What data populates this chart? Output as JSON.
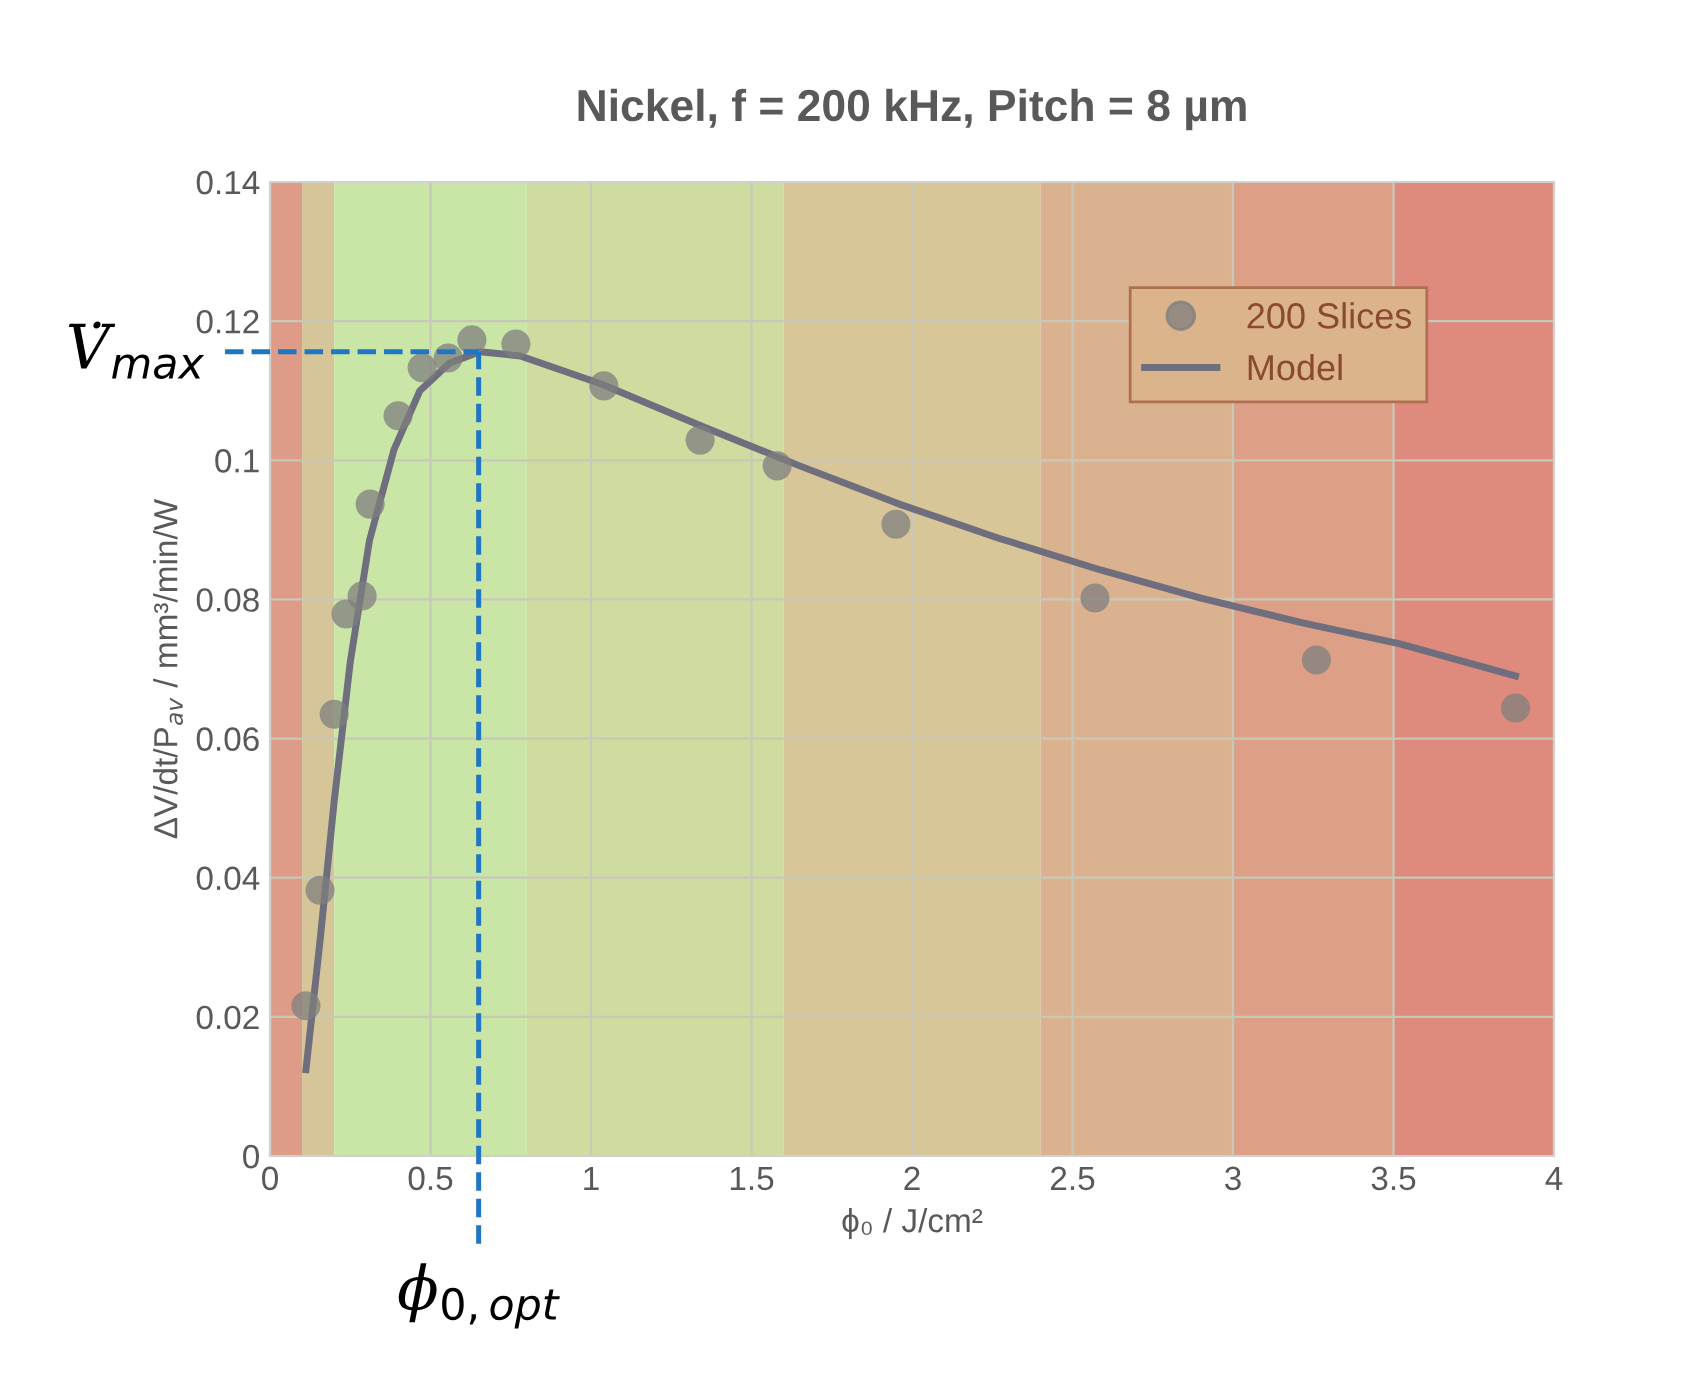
{
  "chart_data": {
    "type": "scatter",
    "title": "Nickel, f = 200 kHz, Pitch = 8 µm",
    "xlabel": "ϕ₀ / J/cm²",
    "ylabel": "ΔV/dt/P$_{av}$ / mm³/min/W",
    "series": [
      {
        "name": "200 Slices",
        "color": "#7f7f7f",
        "marker": "circle",
        "x": [
          0.112,
          0.156,
          0.2,
          0.237,
          0.287,
          0.312,
          0.399,
          0.474,
          0.555,
          0.629,
          0.766,
          1.04,
          1.34,
          1.58,
          1.95,
          2.57,
          3.26,
          3.88
        ],
        "values": [
          0.0216,
          0.0382,
          0.0635,
          0.0779,
          0.0805,
          0.0937,
          0.1064,
          0.1133,
          0.1147,
          0.1173,
          0.1167,
          0.1107,
          0.1029,
          0.0992,
          0.0908,
          0.0802,
          0.0713,
          0.0644
        ]
      },
      {
        "name": "Model",
        "type": "line",
        "color": "#6e6e7e",
        "line_style": "solid",
        "x": [
          0.112,
          0.156,
          0.2,
          0.25,
          0.31,
          0.386,
          0.467,
          0.56,
          0.654,
          0.78,
          1.03,
          1.34,
          1.65,
          1.96,
          2.27,
          2.59,
          2.9,
          3.21,
          3.52,
          3.88
        ],
        "values": [
          0.0124,
          0.031,
          0.051,
          0.071,
          0.0885,
          0.1015,
          0.11,
          0.114,
          0.1156,
          0.115,
          0.111,
          0.105,
          0.0992,
          0.0937,
          0.0888,
          0.0842,
          0.0802,
          0.0767,
          0.0736,
          0.069
        ]
      }
    ],
    "ref_lines": [
      {
        "axis": "y",
        "value": 0.1156,
        "label": "V̇$_{max}$",
        "color": "#1f77c4",
        "line_style": "dashed"
      },
      {
        "axis": "x",
        "value": 0.65,
        "label": "ϕ$_{0,opt}$",
        "color": "#1f77c4",
        "line_style": "dashed"
      }
    ],
    "bands": [
      {
        "axis": "x",
        "from": 0,
        "to": 0.1,
        "color": "#dd9b88"
      },
      {
        "axis": "x",
        "from": 0.1,
        "to": 0.2,
        "color": "#d5c598"
      },
      {
        "axis": "x",
        "from": 0.2,
        "to": 0.8,
        "color": "#c9e6a6"
      },
      {
        "axis": "x",
        "from": 0.8,
        "to": 1.6,
        "color": "#cfdca0"
      },
      {
        "axis": "x",
        "from": 1.6,
        "to": 2.4,
        "color": "#d8c698"
      },
      {
        "axis": "x",
        "from": 2.4,
        "to": 3,
        "color": "#dbb290"
      },
      {
        "axis": "x",
        "from": 3,
        "to": 3.5,
        "color": "#dd9f86"
      },
      {
        "axis": "x",
        "from": 3.5,
        "to": 4,
        "color": "#de8a7c"
      }
    ],
    "xlim": [
      0,
      4
    ],
    "xticks": [
      0,
      0.5,
      1,
      1.5,
      2,
      2.5,
      3,
      3.5,
      4
    ],
    "ylim": [
      0,
      0.14
    ],
    "yticks": [
      0,
      0.02,
      0.04,
      0.06,
      0.08,
      0.1,
      0.12,
      0.14
    ],
    "grid": true,
    "legend": "top right"
  }
}
